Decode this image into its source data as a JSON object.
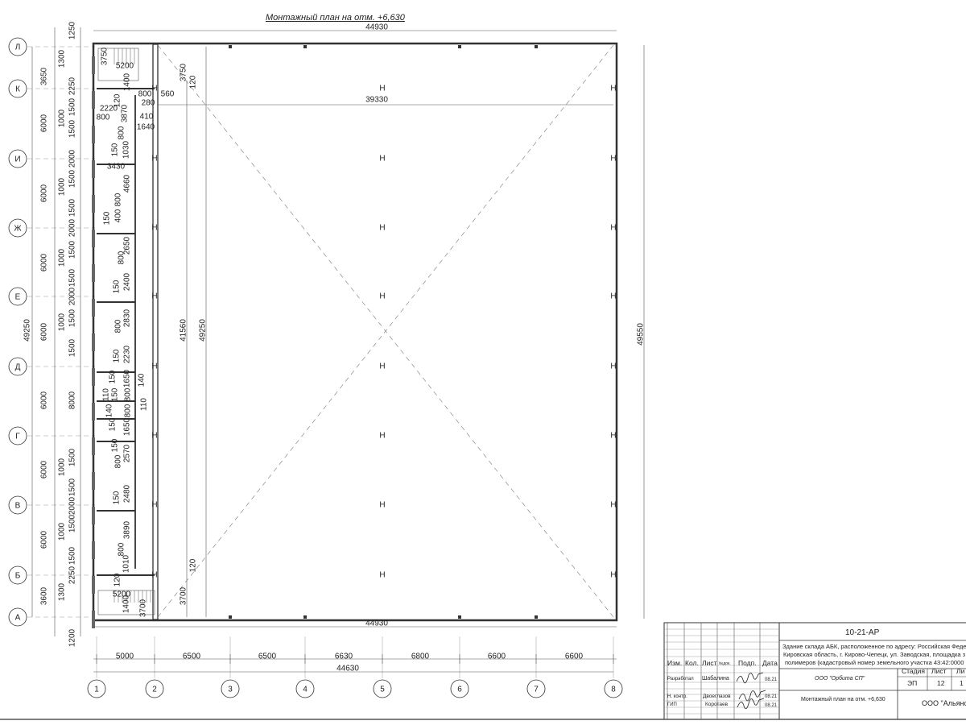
{
  "drawing_title": "Монтажный план на отм. +6,630",
  "grid_rows": [
    "Л",
    "К",
    "И",
    "Ж",
    "Е",
    "Д",
    "Г",
    "В",
    "Б",
    "А"
  ],
  "grid_columns": [
    "1",
    "2",
    "3",
    "4",
    "5",
    "6",
    "7",
    "8"
  ],
  "overall_dims": {
    "top_width": "44930",
    "bottom_width": "44930",
    "total_axes_width": "44630",
    "left_total_height": "49250",
    "right_total_height": "49550",
    "inner_height_1": "41560",
    "inner_height_2": "49250",
    "inner_width": "39330"
  },
  "column_spacing_dims": [
    "5000",
    "6500",
    "6500",
    "6630",
    "6800",
    "6600",
    "6600"
  ],
  "row_spacing_dims": [
    "3650",
    "6000",
    "6000",
    "6000",
    "6000",
    "6000",
    "6000",
    "6000",
    "3600"
  ],
  "left_detail_dims": [
    "1250",
    "1300",
    "2250",
    "1500",
    "1000",
    "1500",
    "2000",
    "1000",
    "1500",
    "1500",
    "2000",
    "1000",
    "1500",
    "1500",
    "2000",
    "1000",
    "1500",
    "1500",
    "8000",
    "1500",
    "1000",
    "1500",
    "2000",
    "1000",
    "1500",
    "1500",
    "2250",
    "1300",
    "1200"
  ],
  "strip_dims": [
    "3750",
    "5200",
    "1400",
    "120",
    "800",
    "280",
    "560",
    "2220",
    "800",
    "3870",
    "410",
    "1640",
    "800",
    "150",
    "1030",
    "3430",
    "4660",
    "800",
    "400",
    "150",
    "2650",
    "800",
    "2400",
    "150",
    "2830",
    "800",
    "2230",
    "150",
    "1650",
    "150",
    "140",
    "110",
    "150",
    "140",
    "800",
    "800",
    "110",
    "150",
    "1650",
    "150",
    "2570",
    "800",
    "150",
    "2480",
    "3890",
    "800",
    "1010",
    "120",
    "5200",
    "1400",
    "3700"
  ],
  "corner_dims": [
    "3750",
    "120",
    "3700",
    "120"
  ],
  "title_block": {
    "code": "10-21-АР",
    "address_lines": [
      "Здание склада АБК, расположенное по адресу: Российская Феде",
      "Кировская область, г. Кирово-Чепецк, ул. Заводская, площадка з",
      "полимеров (кадастровый номер земельного участка 43:42:0000"
    ],
    "headers": [
      "Изм.",
      "Кол.",
      "Лист",
      "№док.",
      "Подп.",
      "Дата"
    ],
    "rows": [
      {
        "role": "Разработал",
        "name": "Шабалина",
        "date": "08.21"
      },
      {
        "role": "Н. контр.",
        "name": "Двоеглазов",
        "date": "08.21"
      },
      {
        "role": "ГИП",
        "name": "Коротаев",
        "date": "08.21"
      }
    ],
    "designer_org": "ООО \"Орбита СП\"",
    "sheet_title": "Монтажный план на отм. +6,630",
    "stage_label": "Стадия",
    "sheet_label": "Лист",
    "sheets_label": "Ли",
    "stage": "ЭП",
    "sheet": "12",
    "sheets": "1",
    "client_org": "ООО \"Альянс"
  }
}
